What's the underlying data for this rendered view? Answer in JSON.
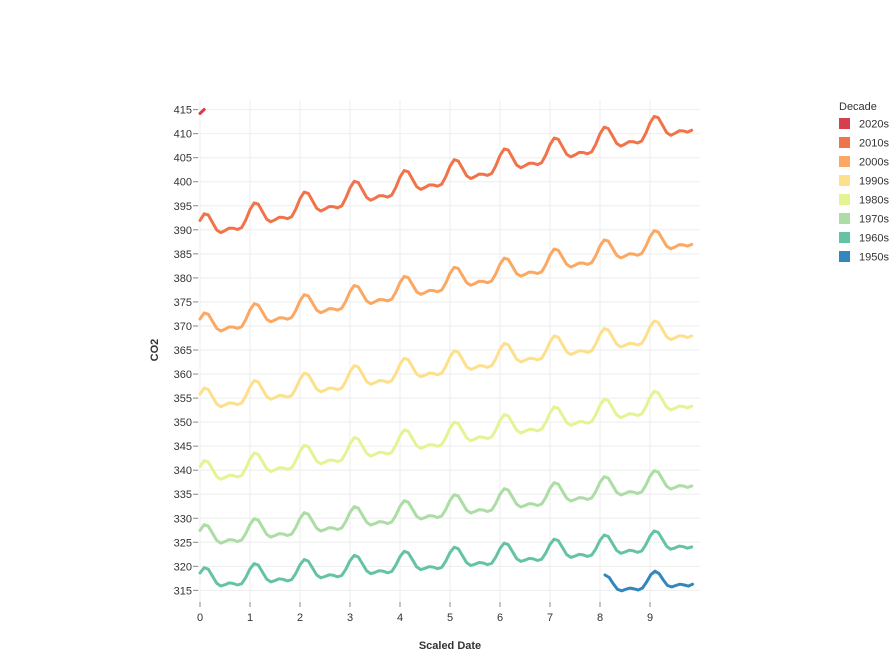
{
  "chart_data": {
    "type": "line",
    "xlabel": "Scaled Date",
    "ylabel": "CO2",
    "xlim": [
      0,
      10
    ],
    "ylim": [
      313,
      417
    ],
    "x_ticks": [
      0,
      1,
      2,
      3,
      4,
      5,
      6,
      7,
      8,
      9
    ],
    "y_ticks": [
      315,
      320,
      325,
      330,
      335,
      340,
      345,
      350,
      355,
      360,
      365,
      370,
      375,
      380,
      385,
      390,
      395,
      400,
      405,
      410,
      415
    ],
    "grid": true,
    "legend": {
      "title": "Decade",
      "placement": "right",
      "entries": [
        "2020s",
        "2010s",
        "2000s",
        "1990s",
        "1980s",
        "1970s",
        "1960s",
        "1950s"
      ]
    },
    "series": [
      {
        "name": "2020s",
        "color": "#d6404e",
        "x_start": 0.0,
        "x_end": 0.15,
        "base": 414.2,
        "slope": 10.0,
        "amp": 0.0
      },
      {
        "name": "2010s",
        "color": "#f1734a",
        "x_start": 0.0,
        "x_end": 9.9,
        "base": 390.0,
        "slope": 2.25,
        "amp": 3.2
      },
      {
        "name": "2000s",
        "color": "#fba862",
        "x_start": 0.0,
        "x_end": 9.9,
        "base": 369.6,
        "slope": 1.9,
        "amp": 3.0
      },
      {
        "name": "1990s",
        "color": "#fde08b",
        "x_start": 0.0,
        "x_end": 9.9,
        "base": 354.0,
        "slope": 1.55,
        "amp": 3.0
      },
      {
        "name": "1980s",
        "color": "#e5f493",
        "x_start": 0.0,
        "x_end": 9.9,
        "base": 338.9,
        "slope": 1.6,
        "amp": 3.0
      },
      {
        "name": "1970s",
        "color": "#abdda4",
        "x_start": 0.0,
        "x_end": 9.9,
        "base": 325.7,
        "slope": 1.25,
        "amp": 2.9
      },
      {
        "name": "1960s",
        "color": "#65c3a5",
        "x_start": 0.0,
        "x_end": 9.9,
        "base": 316.9,
        "slope": 0.85,
        "amp": 2.8
      },
      {
        "name": "1950s",
        "color": "#3288bd",
        "x_start": 8.1,
        "x_end": 9.9,
        "base": 315.8,
        "slope": 0.8,
        "amp": 2.4
      }
    ]
  }
}
